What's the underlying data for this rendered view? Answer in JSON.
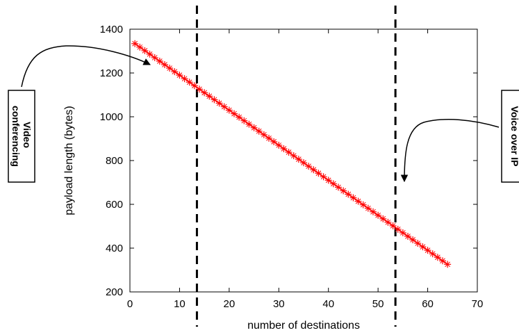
{
  "chart_data": {
    "type": "line",
    "title": "",
    "xlabel": "number of destinations",
    "ylabel": "payload length (bytes)",
    "xlim": [
      0,
      70
    ],
    "ylim": [
      200,
      1400
    ],
    "xticks": [
      0,
      10,
      20,
      30,
      40,
      50,
      60,
      70
    ],
    "yticks": [
      200,
      400,
      600,
      800,
      1000,
      1200,
      1400
    ],
    "grid": false,
    "series": [
      {
        "name": "",
        "color": "#ff0000",
        "marker": "plus-x",
        "x": [
          1,
          2,
          3,
          4,
          5,
          6,
          7,
          8,
          9,
          10,
          11,
          12,
          13,
          14,
          15,
          16,
          17,
          18,
          19,
          20,
          21,
          22,
          23,
          24,
          25,
          26,
          27,
          28,
          29,
          30,
          31,
          32,
          33,
          34,
          35,
          36,
          37,
          38,
          39,
          40,
          41,
          42,
          43,
          44,
          45,
          46,
          47,
          48,
          49,
          50,
          51,
          52,
          53,
          54,
          55,
          56,
          57,
          58,
          59,
          60,
          61,
          62,
          63,
          64
        ],
        "y": [
          1334,
          1318,
          1302,
          1286,
          1270,
          1254,
          1238,
          1222,
          1206,
          1190,
          1174,
          1158,
          1142,
          1126,
          1110,
          1094,
          1078,
          1062,
          1046,
          1030,
          1014,
          998,
          982,
          966,
          950,
          934,
          918,
          902,
          886,
          870,
          854,
          838,
          822,
          806,
          790,
          774,
          758,
          742,
          726,
          710,
          694,
          678,
          662,
          646,
          630,
          614,
          598,
          582,
          566,
          550,
          534,
          518,
          502,
          486,
          470,
          454,
          438,
          422,
          406,
          390,
          374,
          358,
          342,
          326
        ]
      }
    ],
    "vlines": [
      13.5,
      53.5
    ],
    "annotations": [
      {
        "text_lines": [
          "Video",
          "conferencing"
        ],
        "rotation": "vertical"
      },
      {
        "text_lines": [
          "Voice over IP"
        ],
        "rotation": "vertical"
      }
    ]
  }
}
